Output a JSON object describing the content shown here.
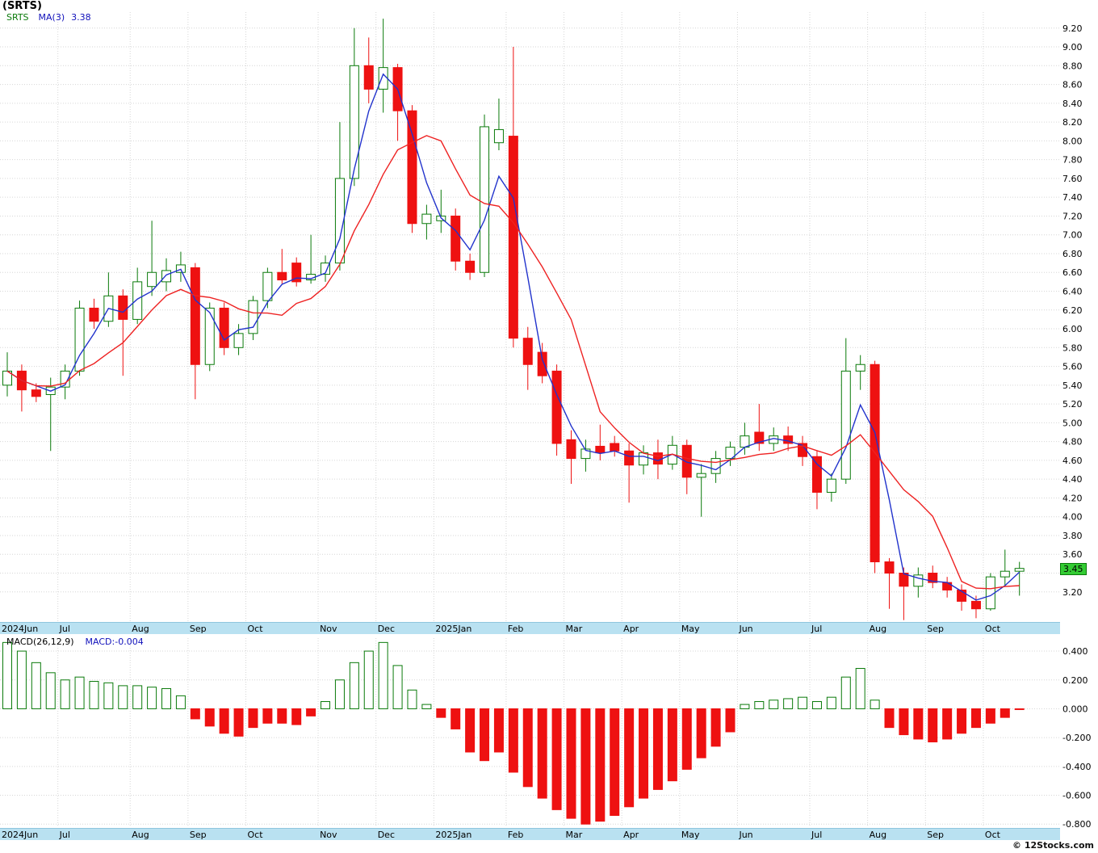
{
  "header": {
    "title": "(SRTS)",
    "symbol": "SRTS",
    "ma_label": "MA(3)",
    "ma_value": "3.38"
  },
  "macd_legend": {
    "params_label": "MACD(26,12,9)",
    "value_label": "MACD:-0.004"
  },
  "price_badge": "3.45",
  "footer": {
    "watermark": "© 12Stocks.com"
  },
  "colors": {
    "up": "#0a7a0a",
    "down": "#ee1111",
    "grid": "#d6d6d6",
    "band_bg": "#b9e1f1",
    "badge_bg": "#33cc33",
    "badge_border": "#0a7a0a",
    "legend_symbol": "#0a7a0a",
    "legend_value": "#1111bb",
    "ma3": "#2233cc",
    "ma_slow": "#ee2222"
  },
  "chart_data": [
    {
      "type": "candlestick",
      "title": "SRTS weekly candlestick chart Jun 2024 - Oct 2025",
      "ylabel": "Price",
      "ylim": [
        2.88,
        9.37
      ],
      "tick_decimals": 2,
      "grid": true,
      "y_ticks": [
        9.2,
        9.0,
        8.8,
        8.6,
        8.4,
        8.2,
        8.0,
        7.8,
        7.6,
        7.4,
        7.2,
        7.0,
        6.8,
        6.6,
        6.4,
        6.2,
        6.0,
        5.8,
        5.6,
        5.4,
        5.2,
        5.0,
        4.8,
        4.6,
        4.4,
        4.2,
        4.0,
        3.8,
        3.6,
        3.4,
        3.2
      ],
      "y_ticks_hidden": [
        3.4
      ],
      "months": [
        {
          "label": "2024Jun",
          "start": 0
        },
        {
          "label": "Jul",
          "start": 4
        },
        {
          "label": "Aug",
          "start": 9
        },
        {
          "label": "Sep",
          "start": 13
        },
        {
          "label": "Oct",
          "start": 17
        },
        {
          "label": "Nov",
          "start": 22
        },
        {
          "label": "Dec",
          "start": 26
        },
        {
          "label": "2025Jan",
          "start": 30
        },
        {
          "label": "Feb",
          "start": 35
        },
        {
          "label": "Mar",
          "start": 39
        },
        {
          "label": "Apr",
          "start": 43
        },
        {
          "label": "May",
          "start": 47
        },
        {
          "label": "Jun",
          "start": 51
        },
        {
          "label": "Jul",
          "start": 56
        },
        {
          "label": "Aug",
          "start": 60
        },
        {
          "label": "Sep",
          "start": 64
        },
        {
          "label": "Oct",
          "start": 68
        }
      ],
      "overlays": [
        {
          "name": "MA(3)",
          "period": 3,
          "color": "#2233cc"
        },
        {
          "name": "MA-slow",
          "period": 7,
          "color": "#ee2222"
        }
      ],
      "last_price": 3.45,
      "candles": [
        [
          5.4,
          5.75,
          5.28,
          5.55
        ],
        [
          5.55,
          5.62,
          5.12,
          5.35
        ],
        [
          5.35,
          5.42,
          5.22,
          5.28
        ],
        [
          5.3,
          5.48,
          4.7,
          5.38
        ],
        [
          5.38,
          5.62,
          5.25,
          5.55
        ],
        [
          5.55,
          6.3,
          5.5,
          6.22
        ],
        [
          6.22,
          6.32,
          6.0,
          6.08
        ],
        [
          6.08,
          6.6,
          6.02,
          6.35
        ],
        [
          6.35,
          6.42,
          5.5,
          6.1
        ],
        [
          6.1,
          6.65,
          6.05,
          6.5
        ],
        [
          6.45,
          7.15,
          6.35,
          6.6
        ],
        [
          6.5,
          6.75,
          6.4,
          6.62
        ],
        [
          6.6,
          6.82,
          6.5,
          6.68
        ],
        [
          6.65,
          6.7,
          5.25,
          5.62
        ],
        [
          5.62,
          6.28,
          5.55,
          6.22
        ],
        [
          6.22,
          6.28,
          5.72,
          5.8
        ],
        [
          5.8,
          6.05,
          5.72,
          5.95
        ],
        [
          5.95,
          6.35,
          5.88,
          6.3
        ],
        [
          6.3,
          6.65,
          6.22,
          6.6
        ],
        [
          6.6,
          6.85,
          6.48,
          6.52
        ],
        [
          6.7,
          6.76,
          6.45,
          6.5
        ],
        [
          6.52,
          7.0,
          6.48,
          6.58
        ],
        [
          6.58,
          6.78,
          6.5,
          6.7
        ],
        [
          6.7,
          8.2,
          6.62,
          7.6
        ],
        [
          7.6,
          9.2,
          7.52,
          8.8
        ],
        [
          8.8,
          9.1,
          8.4,
          8.55
        ],
        [
          8.55,
          9.3,
          8.3,
          8.78
        ],
        [
          8.78,
          8.82,
          8.0,
          8.32
        ],
        [
          8.32,
          8.38,
          7.02,
          7.12
        ],
        [
          7.12,
          7.32,
          6.95,
          7.22
        ],
        [
          7.15,
          7.48,
          7.02,
          7.2
        ],
        [
          7.2,
          7.28,
          6.62,
          6.72
        ],
        [
          6.72,
          6.8,
          6.52,
          6.6
        ],
        [
          6.6,
          8.28,
          6.55,
          8.15
        ],
        [
          7.98,
          8.45,
          7.9,
          8.12
        ],
        [
          8.05,
          9.0,
          5.8,
          5.9
        ],
        [
          5.9,
          6.02,
          5.35,
          5.62
        ],
        [
          5.75,
          5.85,
          5.42,
          5.5
        ],
        [
          5.55,
          5.62,
          4.65,
          4.78
        ],
        [
          4.82,
          4.92,
          4.35,
          4.62
        ],
        [
          4.62,
          4.82,
          4.48,
          4.72
        ],
        [
          4.75,
          4.98,
          4.6,
          4.68
        ],
        [
          4.78,
          4.86,
          4.64,
          4.7
        ],
        [
          4.7,
          4.78,
          4.15,
          4.55
        ],
        [
          4.55,
          4.76,
          4.45,
          4.68
        ],
        [
          4.68,
          4.82,
          4.4,
          4.56
        ],
        [
          4.56,
          4.86,
          4.5,
          4.76
        ],
        [
          4.76,
          4.82,
          4.24,
          4.42
        ],
        [
          4.42,
          4.56,
          4.0,
          4.46
        ],
        [
          4.46,
          4.7,
          4.36,
          4.62
        ],
        [
          4.62,
          4.8,
          4.54,
          4.74
        ],
        [
          4.74,
          5.0,
          4.66,
          4.86
        ],
        [
          4.9,
          5.2,
          4.7,
          4.78
        ],
        [
          4.78,
          4.95,
          4.7,
          4.86
        ],
        [
          4.86,
          4.96,
          4.7,
          4.78
        ],
        [
          4.78,
          4.86,
          4.54,
          4.64
        ],
        [
          4.64,
          4.7,
          4.08,
          4.26
        ],
        [
          4.26,
          4.46,
          4.16,
          4.4
        ],
        [
          4.4,
          5.9,
          4.35,
          5.55
        ],
        [
          5.55,
          5.72,
          5.35,
          5.62
        ],
        [
          5.62,
          5.66,
          3.4,
          3.52
        ],
        [
          3.52,
          3.56,
          3.02,
          3.4
        ],
        [
          3.4,
          3.46,
          2.9,
          3.26
        ],
        [
          3.26,
          3.46,
          3.14,
          3.38
        ],
        [
          3.4,
          3.48,
          3.24,
          3.3
        ],
        [
          3.3,
          3.36,
          3.14,
          3.22
        ],
        [
          3.22,
          3.28,
          3.0,
          3.1
        ],
        [
          3.1,
          3.16,
          2.92,
          3.02
        ],
        [
          3.02,
          3.4,
          3.0,
          3.36
        ],
        [
          3.36,
          3.65,
          3.26,
          3.42
        ],
        [
          3.42,
          3.52,
          3.16,
          3.45
        ]
      ]
    },
    {
      "type": "bar",
      "title": "MACD(26,12,9) histogram",
      "ylim": [
        -0.81,
        0.49
      ],
      "tick_decimals": 3,
      "grid": true,
      "y_ticks": [
        0.4,
        0.2,
        0.0,
        -0.2,
        -0.4,
        -0.6,
        -0.8
      ],
      "y_ticks_hidden": [],
      "values": [
        0.46,
        0.4,
        0.32,
        0.25,
        0.2,
        0.22,
        0.19,
        0.18,
        0.16,
        0.16,
        0.15,
        0.14,
        0.09,
        -0.07,
        -0.12,
        -0.17,
        -0.19,
        -0.13,
        -0.1,
        -0.1,
        -0.11,
        -0.05,
        0.05,
        0.2,
        0.32,
        0.4,
        0.46,
        0.3,
        0.13,
        0.03,
        -0.06,
        -0.14,
        -0.3,
        -0.36,
        -0.3,
        -0.44,
        -0.54,
        -0.62,
        -0.7,
        -0.76,
        -0.8,
        -0.78,
        -0.74,
        -0.68,
        -0.62,
        -0.56,
        -0.5,
        -0.42,
        -0.34,
        -0.26,
        -0.16,
        0.03,
        0.05,
        0.06,
        0.07,
        0.08,
        0.05,
        0.08,
        0.22,
        0.28,
        0.06,
        -0.13,
        -0.18,
        -0.21,
        -0.23,
        -0.21,
        -0.17,
        -0.13,
        -0.1,
        -0.06,
        -0.004
      ]
    }
  ]
}
